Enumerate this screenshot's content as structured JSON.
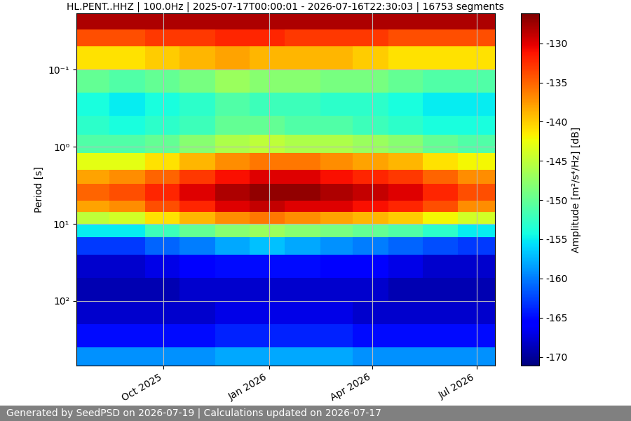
{
  "chart_data": {
    "type": "heatmap",
    "title": "HL.PENT..HHZ | 100.0Hz | 2025-07-17T00:00:01 - 2026-07-16T22:30:03 | 16753 segments",
    "y_label": "Period [s]",
    "colorbar_label": "Amplitude [m²/s⁴/Hz] [dB]",
    "footer": "Generated by SeedPSD on 2026-07-19 | Calculations updated on 2026-07-17",
    "log": "y",
    "grid": true,
    "xlim": [
      "2025-07-17T00:00:01",
      "2026-07-16T22:30:03"
    ],
    "xticks": [
      {
        "value": "2025-10-01",
        "label": "Oct 2025"
      },
      {
        "value": "2026-01-01",
        "label": "Jan 2026"
      },
      {
        "value": "2026-04-01",
        "label": "Apr 2026"
      },
      {
        "value": "2026-07-01",
        "label": "Jul 2026"
      }
    ],
    "ylim": [
      686,
      0.0187
    ],
    "yticks": [
      {
        "value": 0.1,
        "label": "10⁻¹"
      },
      {
        "value": 1,
        "label": "10⁰"
      },
      {
        "value": 10,
        "label": "10¹"
      },
      {
        "value": 100,
        "label": "10²"
      }
    ],
    "x_edges": [
      "2025-07-17T00:00:01",
      "2025-08-15",
      "2025-09-15",
      "2025-10-15",
      "2025-11-15",
      "2025-12-15",
      "2026-01-15",
      "2026-02-15",
      "2026-03-15",
      "2026-04-15",
      "2026-05-15",
      "2026-06-15",
      "2026-07-16T22:30:03"
    ],
    "y_edges": [
      0.0187,
      0.03,
      0.05,
      0.1,
      0.2,
      0.4,
      0.7,
      1.2,
      2,
      3,
      5,
      7,
      10,
      15,
      25,
      50,
      100,
      200,
      400,
      686
    ],
    "cells": [
      [
        -128,
        -128,
        -128,
        -128,
        -128,
        -128,
        -128,
        -128,
        -128,
        -128,
        -128,
        -128
      ],
      [
        -134,
        -134,
        -133,
        -133,
        -132,
        -132,
        -133,
        -133,
        -133,
        -134,
        -134,
        -134
      ],
      [
        -141,
        -141,
        -140,
        -139,
        -138,
        -139,
        -139,
        -139,
        -140,
        -141,
        -141,
        -141
      ],
      [
        -150,
        -151,
        -150,
        -149,
        -147,
        -148,
        -148,
        -149,
        -149,
        -150,
        -151,
        -151
      ],
      [
        -154,
        -155,
        -154,
        -153,
        -151,
        -152,
        -152,
        -153,
        -153,
        -154,
        -155,
        -155
      ],
      [
        -153,
        -154,
        -153,
        -152,
        -150,
        -150,
        -151,
        -151,
        -152,
        -153,
        -154,
        -154
      ],
      [
        -151,
        -151,
        -150,
        -148,
        -146,
        -145,
        -146,
        -146,
        -147,
        -148,
        -150,
        -151
      ],
      [
        -143,
        -143,
        -141,
        -139,
        -137,
        -136,
        -136,
        -137,
        -138,
        -139,
        -141,
        -142
      ],
      [
        -138,
        -137,
        -135,
        -133,
        -131,
        -130,
        -130,
        -131,
        -132,
        -133,
        -135,
        -137
      ],
      [
        -135,
        -134,
        -132,
        -130,
        -128,
        -127,
        -127,
        -128,
        -129,
        -130,
        -132,
        -134
      ],
      [
        -138,
        -137,
        -134,
        -132,
        -130,
        -129,
        -130,
        -130,
        -131,
        -132,
        -134,
        -137
      ],
      [
        -145,
        -144,
        -141,
        -139,
        -137,
        -136,
        -137,
        -138,
        -139,
        -140,
        -142,
        -144
      ],
      [
        -155,
        -155,
        -152,
        -150,
        -148,
        -147,
        -148,
        -149,
        -150,
        -151,
        -153,
        -155
      ],
      [
        -163,
        -163,
        -161,
        -160,
        -158,
        -157,
        -158,
        -159,
        -160,
        -161,
        -162,
        -163
      ],
      [
        -168,
        -168,
        -167,
        -166,
        -165,
        -165,
        -165,
        -166,
        -166,
        -167,
        -168,
        -168
      ],
      [
        -169,
        -169,
        -169,
        -168,
        -168,
        -168,
        -168,
        -168,
        -168,
        -169,
        -169,
        -169
      ],
      [
        -168,
        -168,
        -168,
        -168,
        -167,
        -167,
        -167,
        -167,
        -168,
        -168,
        -168,
        -168
      ],
      [
        -165,
        -165,
        -165,
        -165,
        -164,
        -164,
        -164,
        -164,
        -165,
        -165,
        -165,
        -165
      ],
      [
        -159,
        -159,
        -159,
        -159,
        -158,
        -158,
        -158,
        -158,
        -159,
        -159,
        -159,
        -159
      ]
    ],
    "colorbar_range": [
      -171.1,
      -126.2
    ],
    "colorbar_ticks": [
      -170,
      -165,
      -160,
      -155,
      -150,
      -145,
      -140,
      -135,
      -130
    ]
  }
}
